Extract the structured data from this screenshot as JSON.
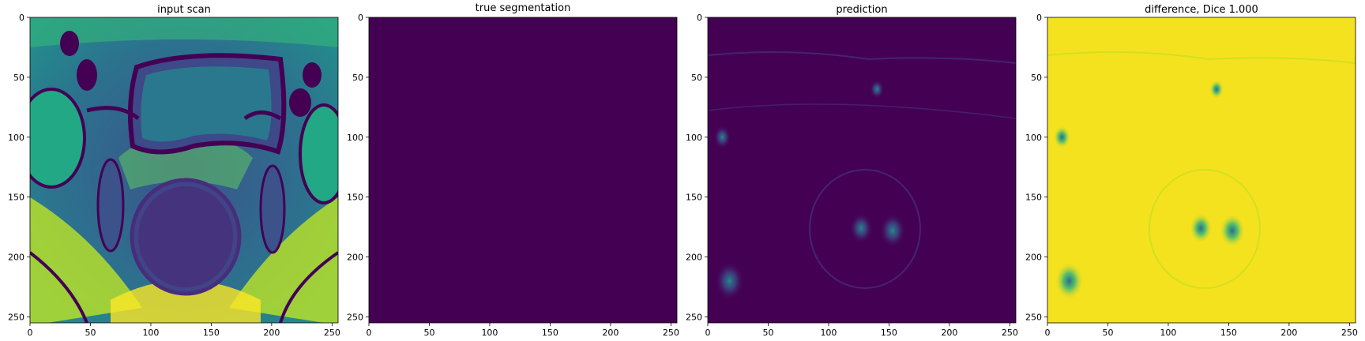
{
  "figure": {
    "background": "#ffffff"
  },
  "chart_data": [
    {
      "type": "heatmap",
      "title": "input scan",
      "description_content": "MRI-like anatomical scan, viridis colormap",
      "colormap": "viridis",
      "xlim": [
        0,
        255
      ],
      "ylim": [
        255,
        0
      ],
      "xticks": [
        0,
        50,
        100,
        150,
        200,
        250
      ],
      "yticks": [
        0,
        50,
        100,
        150,
        200,
        250
      ],
      "grid": false
    },
    {
      "type": "heatmap",
      "title": "true segmentation",
      "colormap": "viridis",
      "fill_color": "#440154",
      "xlim": [
        0,
        255
      ],
      "ylim": [
        255,
        0
      ],
      "xticks": [
        0,
        50,
        100,
        150,
        200,
        250
      ],
      "yticks": [
        0,
        50,
        100,
        150,
        200,
        250
      ],
      "grid": false
    },
    {
      "type": "heatmap",
      "title": "prediction",
      "colormap": "viridis",
      "fill_color": "#440154",
      "xlim": [
        0,
        255
      ],
      "ylim": [
        255,
        0
      ],
      "xticks": [
        0,
        50,
        100,
        150,
        200,
        250
      ],
      "yticks": [
        0,
        50,
        100,
        150,
        200,
        250
      ],
      "grid": false,
      "hotspots": [
        {
          "x": 18,
          "y": 220,
          "r": 10
        },
        {
          "x": 153,
          "y": 178,
          "r": 9
        },
        {
          "x": 127,
          "y": 176,
          "r": 8
        },
        {
          "x": 12,
          "y": 100,
          "r": 6
        },
        {
          "x": 140,
          "y": 60,
          "r": 5
        }
      ]
    },
    {
      "type": "heatmap",
      "title": "difference, Dice 1.000",
      "colormap": "viridis",
      "fill_color": "#f5e21e",
      "xlim": [
        0,
        255
      ],
      "ylim": [
        255,
        0
      ],
      "xticks": [
        0,
        50,
        100,
        150,
        200,
        250
      ],
      "yticks": [
        0,
        50,
        100,
        150,
        200,
        250
      ],
      "grid": false,
      "hotspots": [
        {
          "x": 18,
          "y": 220,
          "r": 10
        },
        {
          "x": 153,
          "y": 178,
          "r": 9
        },
        {
          "x": 127,
          "y": 176,
          "r": 8
        },
        {
          "x": 12,
          "y": 100,
          "r": 6
        },
        {
          "x": 140,
          "y": 60,
          "r": 5
        }
      ]
    }
  ]
}
